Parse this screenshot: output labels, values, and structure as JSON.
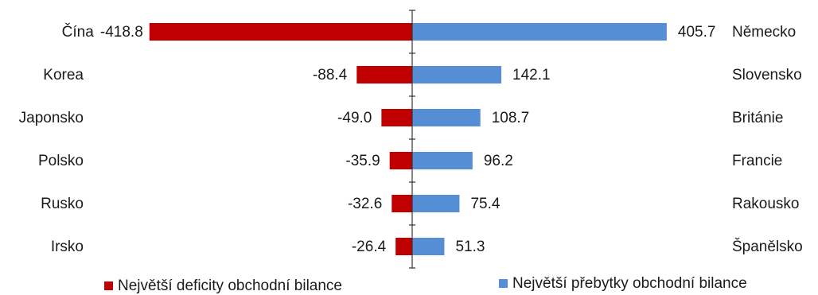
{
  "chart_data": {
    "type": "bar",
    "orientation": "horizontal-diverging",
    "rows": [
      {
        "neg_country": "Čína",
        "neg_value": -418.8,
        "pos_country": "Německo",
        "pos_value": 405.7
      },
      {
        "neg_country": "Korea",
        "neg_value": -88.4,
        "pos_country": "Slovensko",
        "pos_value": 142.1
      },
      {
        "neg_country": "Japonsko",
        "neg_value": -49.0,
        "pos_country": "Británie",
        "pos_value": 108.7
      },
      {
        "neg_country": "Polsko",
        "neg_value": -35.9,
        "pos_country": "Francie",
        "pos_value": 96.2
      },
      {
        "neg_country": "Rusko",
        "neg_value": -32.6,
        "pos_country": "Rakousko",
        "pos_value": 75.4
      },
      {
        "neg_country": "Irsko",
        "neg_value": -26.4,
        "pos_country": "Španělsko",
        "pos_value": 51.3
      }
    ],
    "series": [
      {
        "name": "Největší deficity obchodní bilance",
        "color": "#c00000"
      },
      {
        "name": "Největší přebytky obchodní bilance",
        "color": "#558ed5"
      }
    ],
    "legend_position": "bottom",
    "grid": false
  }
}
